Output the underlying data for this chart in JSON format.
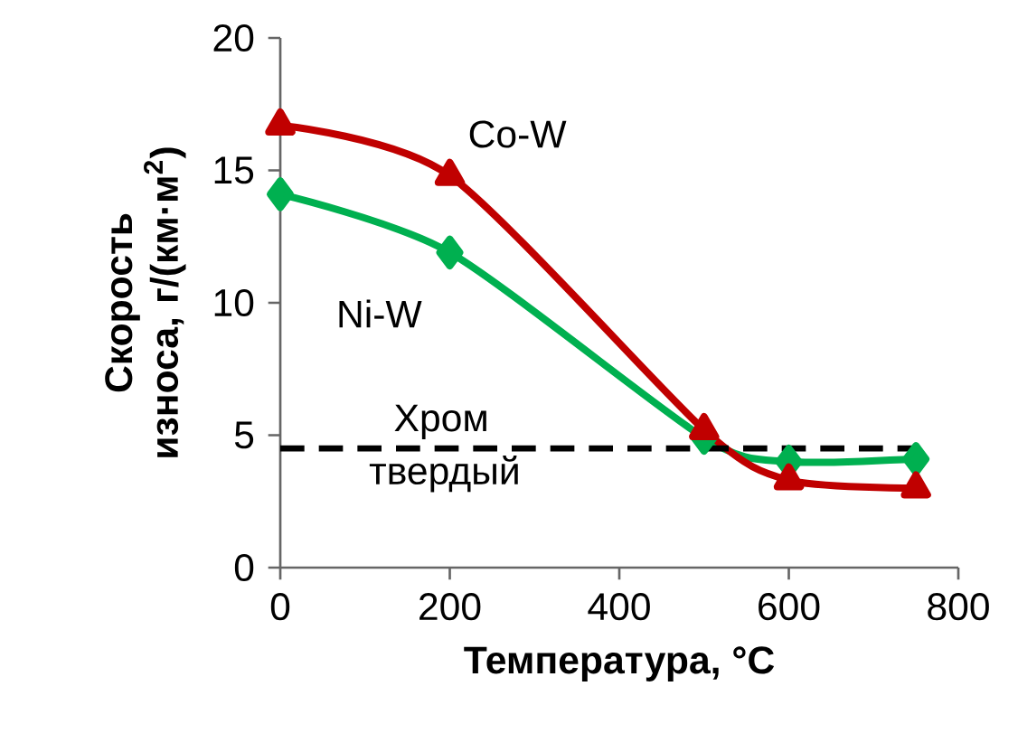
{
  "chart_data": {
    "type": "line",
    "xlabel": "Температура, °C",
    "ylabel": "Скорость износа, г/(км·м$^{2}$)",
    "xlim": [
      0,
      800
    ],
    "ylim": [
      0,
      20
    ],
    "xticks": [
      0,
      200,
      400,
      600,
      800
    ],
    "yticks": [
      0,
      5,
      10,
      15,
      20
    ],
    "grid": false,
    "legend": false,
    "line_style": "solid",
    "series": [
      {
        "name": "Co-W",
        "color": "#c00000",
        "marker": "triangle",
        "x": [
          0,
          200,
          500,
          600,
          750
        ],
        "values": [
          16.7,
          14.8,
          5.2,
          3.3,
          3.0
        ]
      },
      {
        "name": "Ni-W",
        "color": "#00b050",
        "marker": "diamond",
        "x": [
          0,
          200,
          500,
          600,
          750
        ],
        "values": [
          14.1,
          11.9,
          4.9,
          4.0,
          4.1
        ]
      }
    ],
    "ref_lines": [
      {
        "axis": "y",
        "value": 4.5,
        "label": "Хром твердый",
        "color": "#000000",
        "line_style": "dashed"
      }
    ]
  }
}
